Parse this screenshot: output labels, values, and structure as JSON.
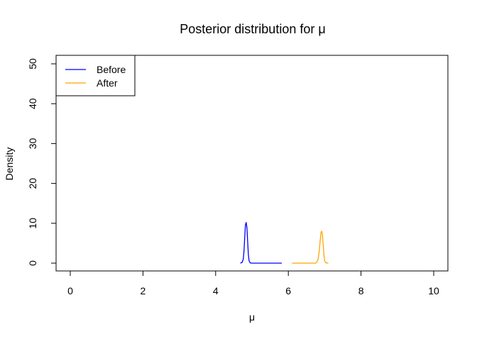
{
  "chart_data": {
    "type": "line",
    "title": "Posterior distribution for μ",
    "xlabel": "μ",
    "ylabel": "Density",
    "xlim": [
      0,
      10
    ],
    "ylim": [
      0,
      52
    ],
    "x_ticks": [
      0,
      2,
      4,
      6,
      8,
      10
    ],
    "y_ticks": [
      0,
      10,
      20,
      30,
      40,
      50
    ],
    "grid": false,
    "legend_position": "top-left",
    "series": [
      {
        "name": "Before",
        "color": "#0000ff",
        "points": [
          [
            4.68,
            0.0
          ],
          [
            4.73,
            0.2
          ],
          [
            4.76,
            1.0
          ],
          [
            4.78,
            3.0
          ],
          [
            4.8,
            6.5
          ],
          [
            4.82,
            9.6
          ],
          [
            4.84,
            10.2
          ],
          [
            4.86,
            9.0
          ],
          [
            4.88,
            5.5
          ],
          [
            4.9,
            2.2
          ],
          [
            4.92,
            0.6
          ],
          [
            4.95,
            0.05
          ],
          [
            5.0,
            0.0
          ],
          [
            5.4,
            0.0
          ],
          [
            5.82,
            0.0
          ]
        ]
      },
      {
        "name": "After",
        "color": "#ffa500",
        "points": [
          [
            6.1,
            0.0
          ],
          [
            6.5,
            0.0
          ],
          [
            6.75,
            0.0
          ],
          [
            6.78,
            0.2
          ],
          [
            6.82,
            1.0
          ],
          [
            6.85,
            3.0
          ],
          [
            6.88,
            6.0
          ],
          [
            6.9,
            7.8
          ],
          [
            6.92,
            8.0
          ],
          [
            6.94,
            7.0
          ],
          [
            6.96,
            4.5
          ],
          [
            6.98,
            2.0
          ],
          [
            7.0,
            0.6
          ],
          [
            7.03,
            0.1
          ],
          [
            7.1,
            0.0
          ]
        ]
      }
    ]
  }
}
